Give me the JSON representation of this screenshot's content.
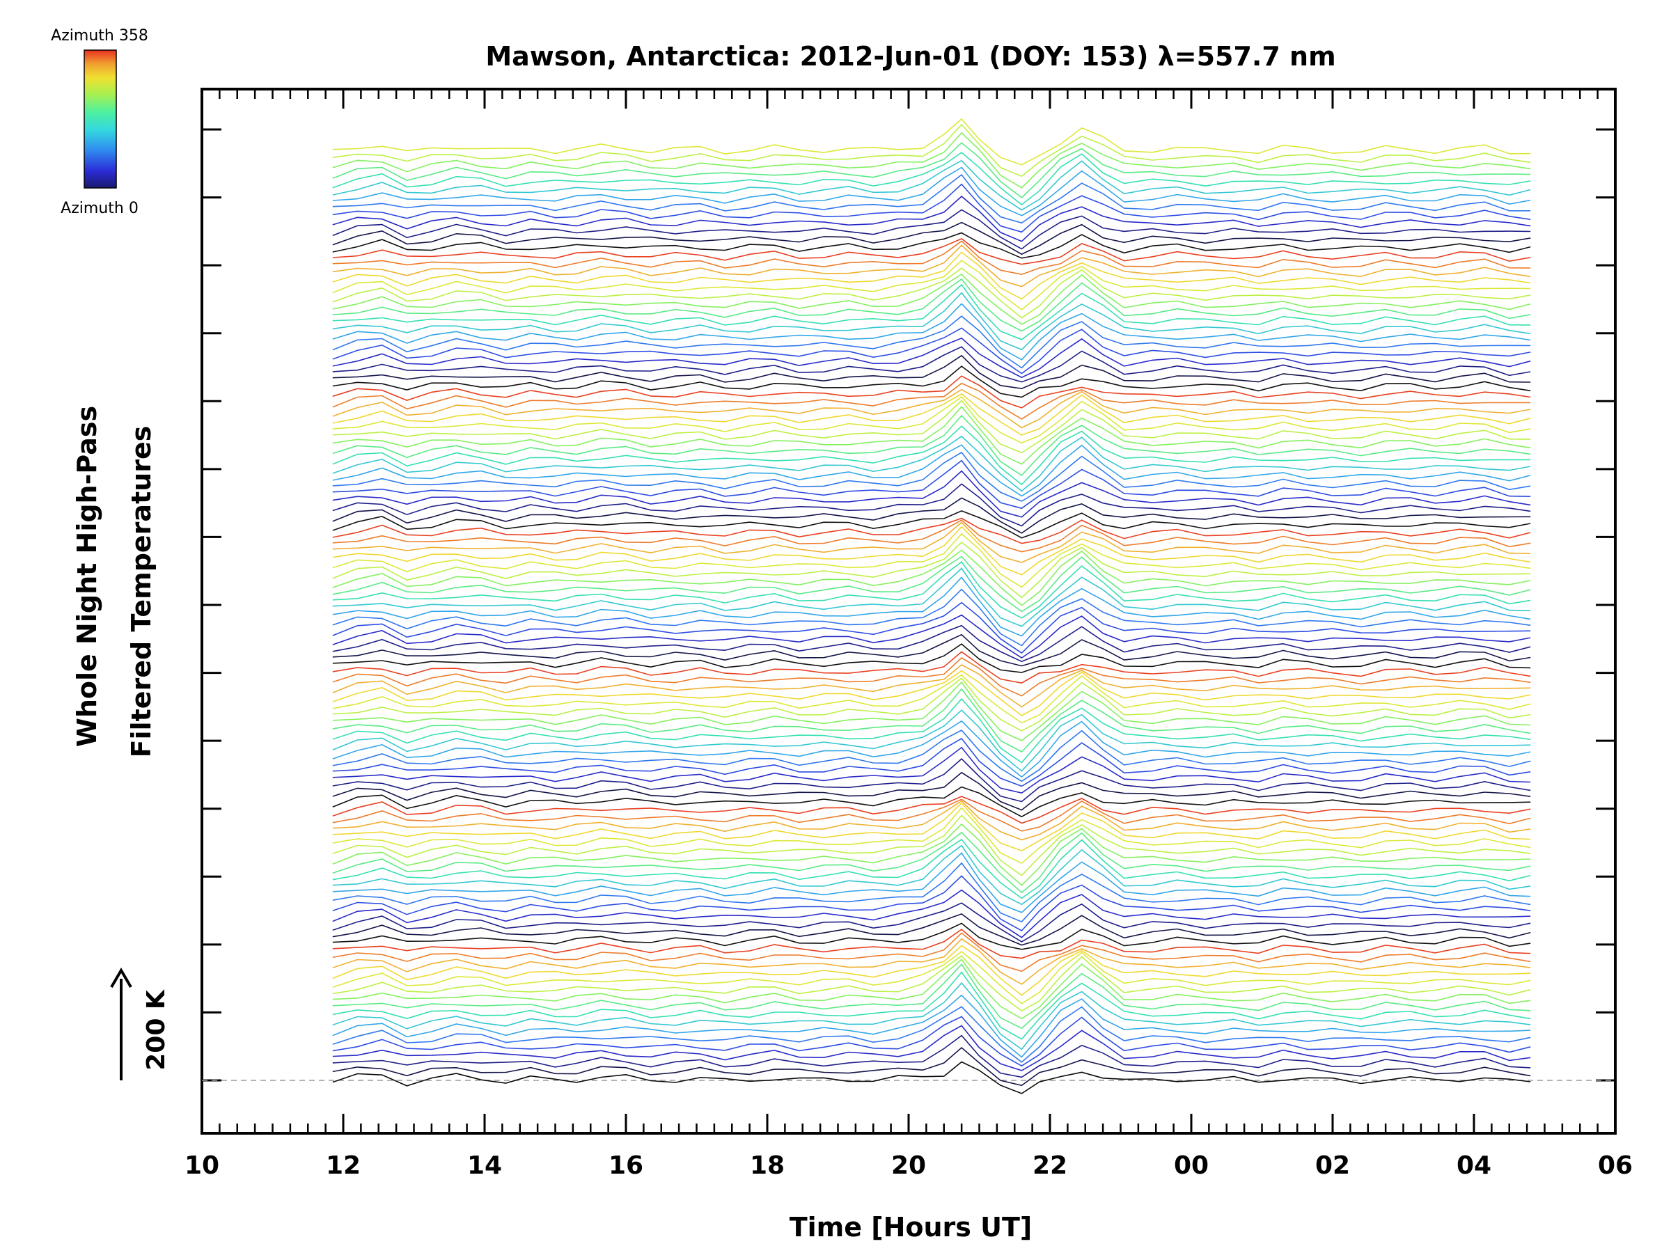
{
  "chart_data": {
    "type": "line",
    "title": "Mawson, Antarctica: 2012-Jun-01 (DOY: 153) λ=557.7 nm",
    "xlabel": "Time [Hours UT]",
    "ylabel_line1": "Whole Night High-Pass",
    "ylabel_line2": "Filtered Temperatures",
    "xlim": [
      10,
      30
    ],
    "x_tick_labels": [
      "10",
      "12",
      "14",
      "16",
      "18",
      "20",
      "22",
      "00",
      "02",
      "04",
      "06"
    ],
    "y_ticks_count": 15,
    "colorbar": {
      "top_label": "Azimuth 358",
      "bottom_label": "Azimuth 0",
      "colormap": [
        "#0a0a0a",
        "#1a1a6e",
        "#2b2bd6",
        "#2f6ff0",
        "#33b8e6",
        "#35e0b0",
        "#6ef06a",
        "#c8f040",
        "#f0e030",
        "#f0a030",
        "#e84020"
      ]
    },
    "scale_bar": {
      "label": "200 K",
      "kelvin": 200
    },
    "baseline_style": "dashed-grey",
    "n_series": 115,
    "n_rings": 7,
    "time_points": [
      11.85,
      12.2,
      12.55,
      12.9,
      13.25,
      13.6,
      13.95,
      14.3,
      14.65,
      15.0,
      15.3,
      15.65,
      16.0,
      16.35,
      16.7,
      17.05,
      17.4,
      17.75,
      18.1,
      18.45,
      18.8,
      19.15,
      19.5,
      19.85,
      20.2,
      20.5,
      20.75,
      21.0,
      21.3,
      21.6,
      21.85,
      22.15,
      22.45,
      22.75,
      23.05,
      23.45,
      23.8,
      24.2,
      24.6,
      24.95,
      25.3,
      25.65,
      26.0,
      26.4,
      26.75,
      27.1,
      27.45,
      27.8,
      28.15,
      28.5,
      28.8
    ],
    "base_profile_K": [
      -10,
      20,
      35,
      -15,
      5,
      25,
      15,
      -5,
      10,
      0,
      5,
      20,
      15,
      0,
      5,
      10,
      -5,
      5,
      15,
      0,
      5,
      10,
      0,
      10,
      20,
      40,
      100,
      40,
      -20,
      -60,
      -20,
      10,
      60,
      20,
      -10,
      5,
      10,
      0,
      5,
      -5,
      15,
      5,
      0,
      -5,
      10,
      5,
      0,
      10,
      15,
      -10,
      -5
    ],
    "ring_feature_x": [
      20.7,
      22.4
    ]
  }
}
